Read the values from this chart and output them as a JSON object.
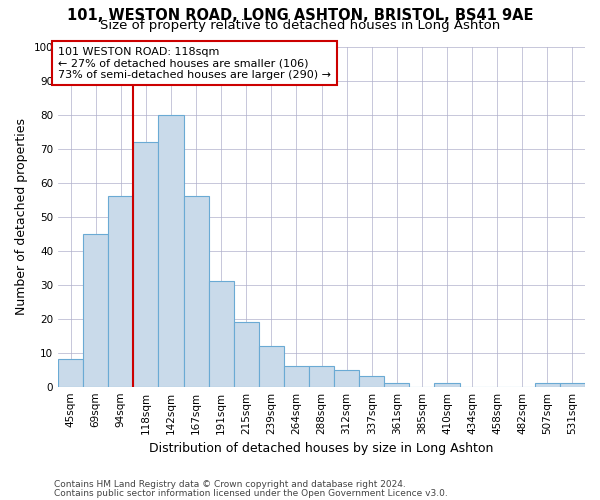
{
  "title1": "101, WESTON ROAD, LONG ASHTON, BRISTOL, BS41 9AE",
  "title2": "Size of property relative to detached houses in Long Ashton",
  "xlabel": "Distribution of detached houses by size in Long Ashton",
  "ylabel": "Number of detached properties",
  "categories": [
    "45sqm",
    "69sqm",
    "94sqm",
    "118sqm",
    "142sqm",
    "167sqm",
    "191sqm",
    "215sqm",
    "239sqm",
    "264sqm",
    "288sqm",
    "312sqm",
    "337sqm",
    "361sqm",
    "385sqm",
    "410sqm",
    "434sqm",
    "458sqm",
    "482sqm",
    "507sqm",
    "531sqm"
  ],
  "values": [
    8,
    45,
    56,
    72,
    80,
    56,
    31,
    19,
    12,
    6,
    6,
    5,
    3,
    1,
    0,
    1,
    0,
    0,
    0,
    1,
    1
  ],
  "bar_color": "#c9daea",
  "bar_edge_color": "#6aaad4",
  "vline_x_index": 3,
  "vline_color": "#cc0000",
  "annotation_line1": "101 WESTON ROAD: 118sqm",
  "annotation_line2": "← 27% of detached houses are smaller (106)",
  "annotation_line3": "73% of semi-detached houses are larger (290) →",
  "annotation_box_color": "#cc0000",
  "ylim": [
    0,
    100
  ],
  "yticks": [
    0,
    10,
    20,
    30,
    40,
    50,
    60,
    70,
    80,
    90,
    100
  ],
  "footer1": "Contains HM Land Registry data © Crown copyright and database right 2024.",
  "footer2": "Contains public sector information licensed under the Open Government Licence v3.0.",
  "title_fontsize": 10.5,
  "subtitle_fontsize": 9.5,
  "axis_label_fontsize": 9,
  "tick_fontsize": 7.5,
  "annotation_fontsize": 8,
  "footer_fontsize": 6.5,
  "background_color": "#ffffff",
  "grid_color": "#b0b0cc"
}
